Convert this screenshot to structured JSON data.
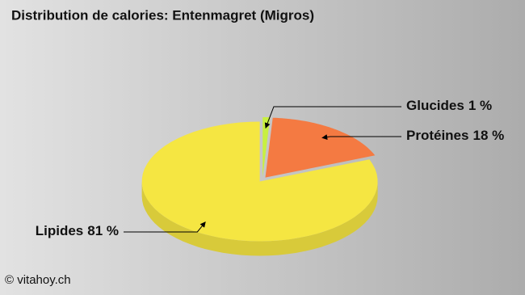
{
  "chart_data": {
    "type": "pie3d",
    "title": "Distribution de calories: Entenmagret (Migros)",
    "categories": [
      "Glucides",
      "Protéines",
      "Lipides"
    ],
    "values": [
      1,
      18,
      81
    ],
    "value_labels": [
      "1 %",
      "18 %",
      "81 %"
    ],
    "colors": [
      "#c8f040",
      "#f47a42",
      "#f5e642"
    ],
    "credit": "© vitahoy.ch"
  }
}
